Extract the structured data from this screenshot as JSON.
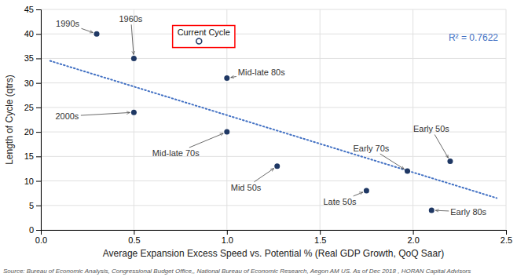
{
  "chart_data": {
    "type": "scatter",
    "xlabel": "Average Expansion Excess Speed vs. Potential % (Real GDP Growth, QoQ Saar)",
    "ylabel": "Length of Cycle (qtrs)",
    "xlim": [
      0.0,
      2.5
    ],
    "ylim": [
      0,
      45
    ],
    "xticks": [
      {
        "value": 0.0,
        "label": "0.0"
      },
      0.5,
      {
        "value": 1.0,
        "label": "1.0"
      },
      1.5,
      {
        "value": 2.0,
        "label": "2.0"
      },
      2.5
    ],
    "yticks": [
      0,
      5,
      10,
      15,
      20,
      25,
      30,
      35,
      40,
      45
    ],
    "grid": true,
    "series": [
      {
        "type": "scatter",
        "color": "#1F3864",
        "x": [
          0.3,
          0.5,
          0.5,
          1.0,
          1.0,
          1.27,
          1.75,
          1.97,
          2.2,
          2.1
        ],
        "values": [
          40,
          35,
          24,
          31,
          20,
          13,
          8,
          12,
          14,
          4
        ],
        "labels": [
          "1990s",
          "1960s",
          "2000s",
          "Mid-late 80s",
          "Mid-late 70s",
          "Mid 50s",
          "Late 50s",
          "Early 70s",
          "Early 50s",
          "Early 80s"
        ]
      },
      {
        "type": "line",
        "line_style": "dotted",
        "color": "#4472C4",
        "x": [
          0.05,
          2.45
        ],
        "values": [
          34.5,
          6.5
        ]
      }
    ],
    "current_cycle": {
      "label": "Current Cycle",
      "x": 0.85,
      "y": 38.5,
      "color": "red"
    },
    "annotation": "R² = 0.7622",
    "source": "Source: Bureau of Economic Analysis, Congressional Budget Office,, National Bureau of Economic Research, Aegon AM US. As of Dec 2018 , HORAN Capital Advisors"
  }
}
